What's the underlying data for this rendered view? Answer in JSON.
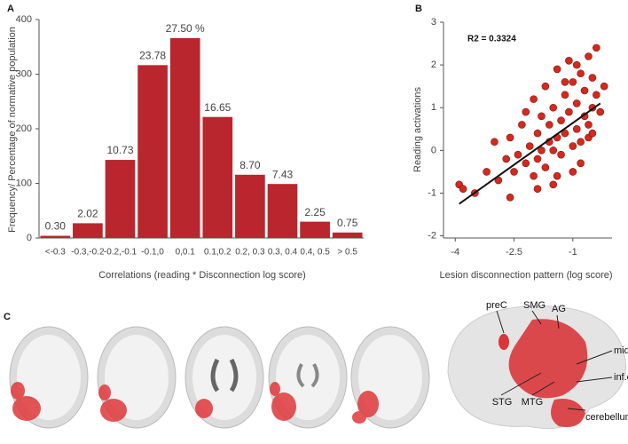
{
  "chart_data": [
    {
      "type": "bar",
      "panel_label": "A",
      "xlabel": "Correlations (reading * Disconnection log score)",
      "ylabel": "Frequency/ Percentage of normative population",
      "categories": [
        "<-0.3",
        "-0.3,-0.2",
        "-0.2,-0.1",
        "-0.1,0",
        "0,0.1",
        "0.1,0.2",
        "0.2, 0.3",
        "0.3, 0.4",
        "0.4, 0.5",
        "> 0.5"
      ],
      "values": [
        4,
        27,
        143,
        316.5,
        366,
        221.6,
        115.8,
        98.9,
        29.9,
        10
      ],
      "bar_labels": [
        "0.30",
        "2.02",
        "10.73",
        "23.78",
        "27.50 %",
        "16.65",
        "8.70",
        "7.43",
        "2.25",
        "0.75"
      ],
      "color": "#b9262e",
      "ylim": [
        0,
        400
      ],
      "yticks": [
        0,
        100,
        200,
        300,
        400
      ]
    },
    {
      "type": "scatter",
      "panel_label": "B",
      "xlabel": "Lesion disconnection pattern (log score)",
      "ylabel": "Reading activations",
      "annotation": "R2 = 0.3324",
      "color": "#d42a1e",
      "x": [
        -3.9,
        -3.8,
        -3.5,
        -3.2,
        -3.0,
        -2.9,
        -2.7,
        -2.6,
        -2.5,
        -2.4,
        -2.3,
        -2.2,
        -2.2,
        -2.1,
        -2.0,
        -2.0,
        -1.9,
        -1.9,
        -1.8,
        -1.8,
        -1.7,
        -1.7,
        -1.6,
        -1.6,
        -1.5,
        -1.5,
        -1.4,
        -1.4,
        -1.3,
        -1.3,
        -1.2,
        -1.2,
        -1.1,
        -1.1,
        -1.0,
        -1.0,
        -0.9,
        -0.9,
        -0.8,
        -0.8,
        -0.7,
        -0.7,
        -0.6,
        -0.6,
        -0.5,
        -0.5,
        -0.4,
        -0.4,
        -0.3,
        -0.2,
        -1.5,
        -1.0,
        -0.8,
        -1.2,
        -0.6,
        -2.6,
        -1.9,
        -1.4,
        -0.9,
        -0.5
      ],
      "values": [
        -0.8,
        -0.9,
        -1.0,
        -0.5,
        0.2,
        -0.7,
        -0.2,
        0.3,
        -0.5,
        -0.1,
        0.6,
        -0.3,
        0.9,
        0.1,
        -0.6,
        1.2,
        0.4,
        -0.2,
        0.8,
        0.0,
        -0.4,
        1.5,
        0.6,
        0.2,
        1.0,
        -0.8,
        0.3,
        1.9,
        0.7,
        -0.1,
        1.3,
        0.4,
        0.9,
        2.1,
        0.1,
        1.6,
        0.5,
        1.1,
        1.8,
        0.2,
        0.8,
        1.4,
        2.2,
        0.6,
        1.0,
        1.7,
        1.3,
        2.4,
        0.9,
        1.5,
        0.0,
        -0.5,
        -0.3,
        1.6,
        0.3,
        -1.1,
        -0.9,
        -0.6,
        2.0,
        0.4
      ],
      "trendline": {
        "x": [
          -3.9,
          -0.3
        ],
        "y": [
          -1.25,
          1.1
        ]
      },
      "xlim": [
        -4.3,
        0
      ],
      "xticks": [
        -4,
        -2.5,
        -1
      ],
      "ylim": [
        -2.05,
        3
      ],
      "yticks": [
        3,
        2,
        1,
        0,
        -1,
        -2
      ]
    }
  ],
  "panel_c": {
    "label": "C",
    "regions": [
      "preC",
      "SMG",
      "AG",
      "mid.occ.",
      "inf.occ.",
      "cerebellum",
      "STG",
      "MTG"
    ]
  }
}
